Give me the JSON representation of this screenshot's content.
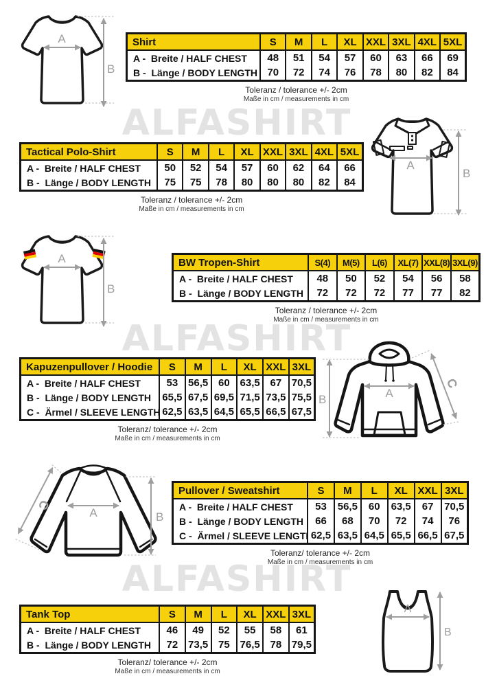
{
  "watermark": {
    "text": "ALFASHIRT"
  },
  "arrow_labels": {
    "a": "A",
    "b": "B",
    "c": "C"
  },
  "colors": {
    "header_yellow": "#f6d10b",
    "table_border": "#151515",
    "arrow_gray": "#9e9e9e",
    "watermark_gray": "#e3e3e3",
    "flag_black": "#111111",
    "flag_red": "#dd0000",
    "flag_gold": "#ffce00"
  },
  "tables": [
    {
      "title": "Shirt",
      "sizes": [
        "S",
        "M",
        "L",
        "XL",
        "XXL",
        "3XL",
        "4XL",
        "5XL"
      ],
      "rows": [
        {
          "label": "A -  Breite / HALF CHEST",
          "values": [
            "48",
            "51",
            "54",
            "57",
            "60",
            "63",
            "66",
            "69"
          ]
        },
        {
          "label": "B -  Länge / BODY LENGTH",
          "values": [
            "70",
            "72",
            "74",
            "76",
            "78",
            "80",
            "82",
            "84"
          ]
        }
      ],
      "notes": [
        "Toleranz / tolerance +/- 2cm",
        "Maße in cm / measurements in cm"
      ]
    },
    {
      "title": "Tactical Polo-Shirt",
      "sizes": [
        "S",
        "M",
        "L",
        "XL",
        "XXL",
        "3XL",
        "4XL",
        "5XL"
      ],
      "rows": [
        {
          "label": "A -  Breite / HALF CHEST",
          "values": [
            "50",
            "52",
            "54",
            "57",
            "60",
            "62",
            "64",
            "66"
          ]
        },
        {
          "label": "B -  Länge / BODY LENGTH",
          "values": [
            "75",
            "75",
            "78",
            "80",
            "80",
            "80",
            "82",
            "84"
          ]
        }
      ],
      "notes": [
        "Toleranz / tolerance +/- 2cm",
        "Maße in cm / measurements in cm"
      ]
    },
    {
      "title": "BW Tropen-Shirt",
      "sizes": [
        "S(4)",
        "M(5)",
        "L(6)",
        "XL(7)",
        "XXL(8)",
        "3XL(9)"
      ],
      "rows": [
        {
          "label": "A -  Breite / HALF CHEST",
          "values": [
            "48",
            "50",
            "52",
            "54",
            "56",
            "58"
          ]
        },
        {
          "label": "B -  Länge / BODY LENGTH",
          "values": [
            "72",
            "72",
            "72",
            "77",
            "77",
            "82"
          ]
        }
      ],
      "notes": [
        "Toleranz / tolerance +/- 2cm",
        "Maße in cm / measurements in cm"
      ]
    },
    {
      "title": "Kapuzenpullover / Hoodie",
      "sizes": [
        "S",
        "M",
        "L",
        "XL",
        "XXL",
        "3XL"
      ],
      "rows": [
        {
          "label": "A -  Breite / HALF CHEST",
          "values": [
            "53",
            "56,5",
            "60",
            "63,5",
            "67",
            "70,5"
          ]
        },
        {
          "label": "B -  Länge / BODY LENGTH",
          "values": [
            "65,5",
            "67,5",
            "69,5",
            "71,5",
            "73,5",
            "75,5"
          ]
        },
        {
          "label": "C -  Ärmel / SLEEVE LENGTH",
          "values": [
            "62,5",
            "63,5",
            "64,5",
            "65,5",
            "66,5",
            "67,5"
          ]
        }
      ],
      "notes": [
        "Toleranz/ tolerance +/- 2cm",
        "Maße in cm / measurements in cm"
      ]
    },
    {
      "title": "Pullover / Sweatshirt",
      "sizes": [
        "S",
        "M",
        "L",
        "XL",
        "XXL",
        "3XL"
      ],
      "rows": [
        {
          "label": "A -  Breite / HALF CHEST",
          "values": [
            "53",
            "56,5",
            "60",
            "63,5",
            "67",
            "70,5"
          ]
        },
        {
          "label": "B -  Länge / BODY LENGTH",
          "values": [
            "66",
            "68",
            "70",
            "72",
            "74",
            "76"
          ]
        },
        {
          "label": "C -  Ärmel / SLEEVE LENGTH",
          "values": [
            "62,5",
            "63,5",
            "64,5",
            "65,5",
            "66,5",
            "67,5"
          ]
        }
      ],
      "notes": [
        "Toleranz/ tolerance +/- 2cm",
        "Maße in cm / measurements in cm"
      ]
    },
    {
      "title": "Tank Top",
      "sizes": [
        "S",
        "M",
        "L",
        "XL",
        "XXL",
        "3XL"
      ],
      "rows": [
        {
          "label": "A -  Breite / HALF CHEST",
          "values": [
            "46",
            "49",
            "52",
            "55",
            "58",
            "61"
          ]
        },
        {
          "label": "B -  Länge / BODY LENGTH",
          "values": [
            "72",
            "73,5",
            "75",
            "76,5",
            "78",
            "79,5"
          ]
        }
      ],
      "notes": [
        "Toleranz/ tolerance +/- 2cm",
        "Maße in cm / measurements in cm"
      ]
    }
  ]
}
